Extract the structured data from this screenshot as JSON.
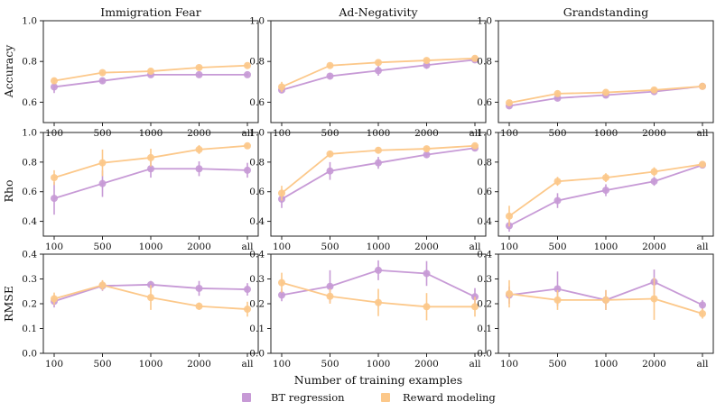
{
  "colors": {
    "bt": "#c79ad6",
    "rm": "#fcc88a",
    "axis": "#222222",
    "text": "#111111"
  },
  "chart_data": {
    "type": "line",
    "x_categories": [
      "100",
      "500",
      "1000",
      "2000",
      "all"
    ],
    "xlabel": "Number of training examples",
    "column_titles": [
      "Immigration Fear",
      "Ad-Negativity",
      "Grandstanding"
    ],
    "legend": {
      "position": "bottom-center",
      "entries": [
        {
          "key": "bt",
          "label": "BT regression"
        },
        {
          "key": "rm",
          "label": "Reward modeling"
        }
      ]
    },
    "rows": [
      {
        "metric": "Accuracy",
        "ylabel": "Accuracy",
        "ylim": [
          0.5,
          1.0
        ],
        "yticks": [
          "0.6",
          "0.8",
          "1.0"
        ],
        "ytick_values": [
          0.6,
          0.8,
          1.0
        ]
      },
      {
        "metric": "Rho",
        "ylabel": "Rho",
        "ylim": [
          0.3,
          1.0
        ],
        "yticks": [
          "0.4",
          "0.6",
          "0.8",
          "1.0"
        ],
        "ytick_values": [
          0.4,
          0.6,
          0.8,
          1.0
        ]
      },
      {
        "metric": "RMSE",
        "ylabel": "RMSE",
        "ylim": [
          0.0,
          0.4
        ],
        "yticks": [
          "0.0",
          "0.1",
          "0.2",
          "0.3",
          "0.4"
        ],
        "ytick_values": [
          0.0,
          0.1,
          0.2,
          0.3,
          0.4
        ]
      }
    ],
    "panels": [
      {
        "row": 0,
        "col": 0,
        "series": [
          {
            "key": "bt",
            "name": "BT regression",
            "values": [
              0.675,
              0.705,
              0.735,
              0.735,
              0.735
            ],
            "err": [
              0.03,
              0.012,
              0.01,
              0.008,
              0.008
            ]
          },
          {
            "key": "rm",
            "name": "Reward modeling",
            "values": [
              0.705,
              0.745,
              0.752,
              0.77,
              0.78
            ],
            "err": [
              0.012,
              0.01,
              0.01,
              0.01,
              0.008
            ]
          }
        ]
      },
      {
        "row": 0,
        "col": 1,
        "series": [
          {
            "key": "bt",
            "name": "BT regression",
            "values": [
              0.66,
              0.728,
              0.755,
              0.782,
              0.808
            ],
            "err": [
              0.015,
              0.015,
              0.025,
              0.018,
              0.01
            ]
          },
          {
            "key": "rm",
            "name": "Reward modeling",
            "values": [
              0.675,
              0.78,
              0.795,
              0.805,
              0.815
            ],
            "err": [
              0.025,
              0.01,
              0.01,
              0.01,
              0.008
            ]
          }
        ]
      },
      {
        "row": 0,
        "col": 2,
        "series": [
          {
            "key": "bt",
            "name": "BT regression",
            "values": [
              0.582,
              0.62,
              0.635,
              0.652,
              0.678
            ],
            "err": [
              0.01,
              0.01,
              0.01,
              0.01,
              0.008
            ]
          },
          {
            "key": "rm",
            "name": "Reward modeling",
            "values": [
              0.597,
              0.642,
              0.648,
              0.66,
              0.678
            ],
            "err": [
              0.012,
              0.01,
              0.01,
              0.008,
              0.008
            ]
          }
        ]
      },
      {
        "row": 1,
        "col": 0,
        "series": [
          {
            "key": "bt",
            "name": "BT regression",
            "values": [
              0.555,
              0.655,
              0.755,
              0.755,
              0.745
            ],
            "err": [
              0.11,
              0.09,
              0.06,
              0.05,
              0.05
            ]
          },
          {
            "key": "rm",
            "name": "Reward modeling",
            "values": [
              0.695,
              0.795,
              0.83,
              0.885,
              0.91
            ],
            "err": [
              0.05,
              0.09,
              0.06,
              0.03,
              0.015
            ]
          }
        ]
      },
      {
        "row": 1,
        "col": 1,
        "series": [
          {
            "key": "bt",
            "name": "BT regression",
            "values": [
              0.55,
              0.74,
              0.795,
              0.85,
              0.895
            ],
            "err": [
              0.06,
              0.06,
              0.04,
              0.02,
              0.015
            ]
          },
          {
            "key": "rm",
            "name": "Reward modeling",
            "values": [
              0.59,
              0.855,
              0.88,
              0.89,
              0.91
            ],
            "err": [
              0.05,
              0.02,
              0.02,
              0.015,
              0.015
            ]
          }
        ]
      },
      {
        "row": 1,
        "col": 2,
        "series": [
          {
            "key": "bt",
            "name": "BT regression",
            "values": [
              0.37,
              0.54,
              0.61,
              0.67,
              0.78
            ],
            "err": [
              0.04,
              0.05,
              0.04,
              0.03,
              0.015
            ]
          },
          {
            "key": "rm",
            "name": "Reward modeling",
            "values": [
              0.435,
              0.67,
              0.695,
              0.735,
              0.785
            ],
            "err": [
              0.07,
              0.03,
              0.03,
              0.03,
              0.015
            ]
          }
        ]
      },
      {
        "row": 2,
        "col": 0,
        "series": [
          {
            "key": "bt",
            "name": "BT regression",
            "values": [
              0.21,
              0.272,
              0.277,
              0.262,
              0.258
            ],
            "err": [
              0.025,
              0.02,
              0.015,
              0.03,
              0.025
            ]
          },
          {
            "key": "rm",
            "name": "Reward modeling",
            "values": [
              0.22,
              0.275,
              0.225,
              0.19,
              0.178
            ],
            "err": [
              0.025,
              0.02,
              0.05,
              0.015,
              0.03
            ]
          }
        ]
      },
      {
        "row": 2,
        "col": 1,
        "series": [
          {
            "key": "bt",
            "name": "BT regression",
            "values": [
              0.235,
              0.27,
              0.335,
              0.322,
              0.228
            ],
            "err": [
              0.025,
              0.065,
              0.04,
              0.05,
              0.035
            ]
          },
          {
            "key": "rm",
            "name": "Reward modeling",
            "values": [
              0.285,
              0.23,
              0.205,
              0.188,
              0.188
            ],
            "err": [
              0.04,
              0.03,
              0.055,
              0.055,
              0.04
            ]
          }
        ]
      },
      {
        "row": 2,
        "col": 2,
        "series": [
          {
            "key": "bt",
            "name": "BT regression",
            "values": [
              0.235,
              0.26,
              0.215,
              0.288,
              0.195
            ],
            "err": [
              0.035,
              0.07,
              0.04,
              0.05,
              0.02
            ]
          },
          {
            "key": "rm",
            "name": "Reward modeling",
            "values": [
              0.24,
              0.215,
              0.215,
              0.22,
              0.16
            ],
            "err": [
              0.055,
              0.04,
              0.04,
              0.085,
              0.02
            ]
          }
        ]
      }
    ]
  }
}
